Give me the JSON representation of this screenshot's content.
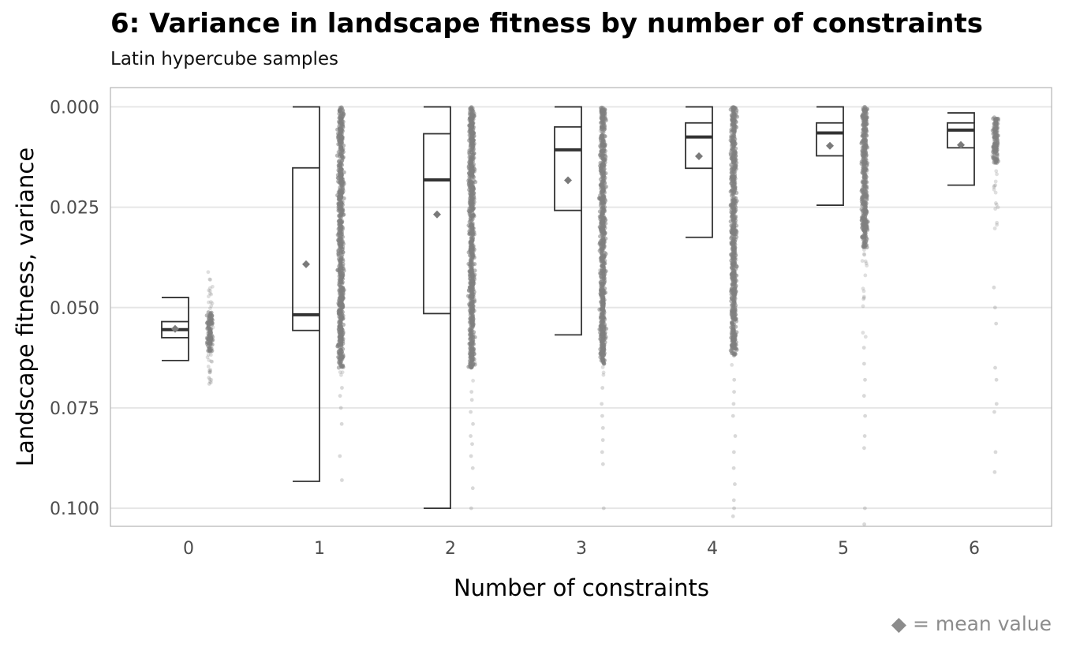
{
  "title": "6: Variance in landscape fitness by number of constraints",
  "subtitle": "Latin hypercube samples",
  "caption": "◆ = mean value",
  "colors": {
    "grid": "#e6e6e6",
    "box": "#333333",
    "points": "#808080",
    "mean": "#7a7a7a",
    "panel_border": "#b3b3b3"
  },
  "chart_data": {
    "type": "box",
    "xlabel": "Number of constraints",
    "ylabel": "Landscape fitness, variance",
    "categories": [
      "0",
      "1",
      "2",
      "3",
      "4",
      "5",
      "6"
    ],
    "y_reversed": true,
    "ylim": [
      -0.0048,
      0.1045
    ],
    "yticks": [
      0.0,
      0.025,
      0.05,
      0.075,
      0.1
    ],
    "ytick_labels": [
      "0.000",
      "0.025",
      "0.050",
      "0.075",
      "0.100"
    ],
    "grid": true,
    "boxes": [
      {
        "category": "0",
        "whisker_low": 0.0475,
        "q1": 0.0535,
        "median": 0.0555,
        "q3": 0.0575,
        "whisker_high": 0.0632,
        "mean": 0.0553
      },
      {
        "category": "1",
        "whisker_low": 0.0,
        "q1": 0.0152,
        "median": 0.0518,
        "q3": 0.0557,
        "whisker_high": 0.0933,
        "mean": 0.0392
      },
      {
        "category": "2",
        "whisker_low": 0.0,
        "q1": 0.0067,
        "median": 0.0182,
        "q3": 0.0515,
        "whisker_high": 0.1,
        "mean": 0.0268
      },
      {
        "category": "3",
        "whisker_low": 0.0,
        "q1": 0.005,
        "median": 0.0107,
        "q3": 0.0258,
        "whisker_high": 0.0568,
        "mean": 0.0183
      },
      {
        "category": "4",
        "whisker_low": 0.0,
        "q1": 0.004,
        "median": 0.0075,
        "q3": 0.0153,
        "whisker_high": 0.0325,
        "mean": 0.0123
      },
      {
        "category": "5",
        "whisker_low": 0.0,
        "q1": 0.004,
        "median": 0.0065,
        "q3": 0.0122,
        "whisker_high": 0.0245,
        "mean": 0.0097
      },
      {
        "category": "6",
        "whisker_low": 0.0015,
        "q1": 0.004,
        "median": 0.0058,
        "q3": 0.0102,
        "whisker_high": 0.0195,
        "mean": 0.0095
      }
    ],
    "point_clouds": [
      {
        "category": "0",
        "dense_range": [
          0.051,
          0.061
        ],
        "sparse_range": [
          0.041,
          0.069
        ],
        "outliers": [
          0.0655,
          0.0675,
          0.069
        ]
      },
      {
        "category": "1",
        "dense_range": [
          0.0,
          0.065
        ],
        "sparse_range": [
          0.0,
          0.068
        ],
        "outliers": [
          0.07,
          0.072,
          0.075,
          0.079,
          0.087,
          0.093
        ]
      },
      {
        "category": "2",
        "dense_range": [
          0.0,
          0.065
        ],
        "sparse_range": [
          0.0,
          0.069
        ],
        "outliers": [
          0.071,
          0.073,
          0.076,
          0.079,
          0.082,
          0.084,
          0.087,
          0.09,
          0.095,
          0.1
        ]
      },
      {
        "category": "3",
        "dense_range": [
          0.0,
          0.064
        ],
        "sparse_range": [
          0.0,
          0.068
        ],
        "outliers": [
          0.07,
          0.074,
          0.077,
          0.08,
          0.083,
          0.086,
          0.089,
          0.1
        ]
      },
      {
        "category": "4",
        "dense_range": [
          0.0,
          0.062
        ],
        "sparse_range": [
          0.0,
          0.066
        ],
        "outliers": [
          0.068,
          0.071,
          0.074,
          0.077,
          0.082,
          0.086,
          0.09,
          0.094,
          0.098,
          0.1,
          0.102
        ]
      },
      {
        "category": "5",
        "dense_range": [
          0.0,
          0.035
        ],
        "sparse_range": [
          0.0,
          0.058
        ],
        "outliers": [
          0.06,
          0.064,
          0.068,
          0.072,
          0.077,
          0.082,
          0.085,
          0.1,
          0.104
        ]
      },
      {
        "category": "6",
        "dense_range": [
          0.0025,
          0.014
        ],
        "sparse_range": [
          0.0025,
          0.031
        ],
        "outliers": [
          0.045,
          0.05,
          0.054,
          0.065,
          0.068,
          0.074,
          0.076,
          0.086,
          0.091
        ]
      }
    ]
  }
}
